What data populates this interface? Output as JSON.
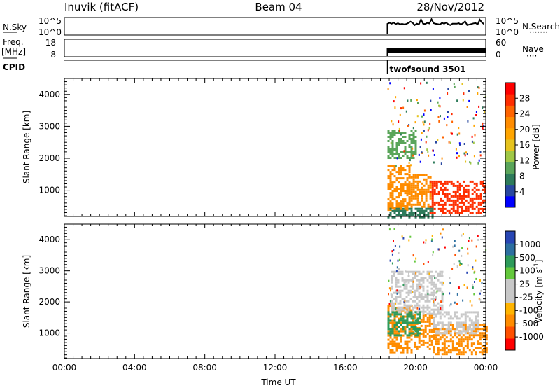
{
  "header": {
    "station": "Inuvik (fitACF)",
    "beam": "Beam 04",
    "date": "28/Nov/2012"
  },
  "strips": {
    "nsky_label": "N.Sky",
    "nsky_ticks": [
      "10^5",
      "10^0"
    ],
    "nsearch_label": "N.Search",
    "nsearch_ticks": [
      "10^5",
      "10^0"
    ],
    "freq_label": "Freq.",
    "freq_unit": "[MHz]",
    "freq_ticks": [
      "18",
      "8"
    ],
    "nave_label": "Nave",
    "nave_ticks": [
      "60",
      "0"
    ],
    "cpid_label": "CPID",
    "cpid_value": "twofsound 3501"
  },
  "chart_data": [
    {
      "type": "heatmap",
      "panel": "power",
      "xlabel": "",
      "ylabel": "Slant Range [km]",
      "x_range_hours": [
        0,
        24
      ],
      "x_ticks": [],
      "y_range_km": [
        180,
        4500
      ],
      "y_ticks": [
        "1000",
        "2000",
        "3000",
        "4000"
      ],
      "colorbar_label": "Power [dB]",
      "colorbar_ticks": [
        "28",
        "24",
        "20",
        "16",
        "12",
        "8",
        "4"
      ],
      "colors": [
        "#0000ff",
        "#2948a0",
        "#2e7b5b",
        "#5aa55a",
        "#a0c846",
        "#e6c31e",
        "#ffa500",
        "#ff8c00",
        "#ff6400",
        "#ff2d00",
        "#ff0000"
      ],
      "data_start_hour": 18.4,
      "echo_regions": [
        {
          "t0": 18.4,
          "t1": 19.6,
          "r0": 400,
          "r1": 1800,
          "value_db": 22
        },
        {
          "t0": 19.6,
          "t1": 20.8,
          "r0": 500,
          "r1": 1500,
          "value_db": 20
        },
        {
          "t0": 20.8,
          "t1": 24.0,
          "r0": 250,
          "r1": 1300,
          "value_db": 28
        },
        {
          "t0": 18.4,
          "t1": 20.0,
          "r0": 2000,
          "r1": 2900,
          "value_db": 8
        },
        {
          "t0": 18.4,
          "t1": 21.0,
          "r0": 180,
          "r1": 450,
          "value_db": 6
        }
      ]
    },
    {
      "type": "heatmap",
      "panel": "velocity",
      "xlabel": "Time UT",
      "ylabel": "Slant Range [km]",
      "x_range_hours": [
        0,
        24
      ],
      "x_ticks": [
        "00:00",
        "04:00",
        "08:00",
        "12:00",
        "16:00",
        "20:00",
        "00:00"
      ],
      "y_range_km": [
        180,
        4500
      ],
      "y_ticks": [
        "1000",
        "2000",
        "3000",
        "4000"
      ],
      "colorbar_label": "Velocity [m s^-1]",
      "colorbar_ticks": [
        "1000",
        "500",
        "100",
        "25",
        "-25",
        "-100",
        "-500",
        "-1000"
      ],
      "colors": [
        "#ff0000",
        "#ff5000",
        "#ff8c00",
        "#ffb400",
        "#c8c8c8",
        "#c8c8c8",
        "#64c83c",
        "#2e9b5a",
        "#2d6fa0",
        "#2846b4"
      ],
      "data_start_hour": 18.4,
      "echo_regions": [
        {
          "t0": 18.4,
          "t1": 19.8,
          "r0": 400,
          "r1": 1900,
          "value_ms": -150
        },
        {
          "t0": 19.8,
          "t1": 21.0,
          "r0": 500,
          "r1": 1600,
          "value_ms": -120
        },
        {
          "t0": 21.0,
          "t1": 24.0,
          "r0": 300,
          "r1": 1300,
          "value_ms": -200
        },
        {
          "t0": 21.0,
          "t1": 23.6,
          "r0": 1000,
          "r1": 1700,
          "value_ms": 0
        },
        {
          "t0": 18.6,
          "t1": 21.5,
          "r0": 1600,
          "r1": 3000,
          "value_ms": 0
        },
        {
          "t0": 18.4,
          "t1": 20.2,
          "r0": 900,
          "r1": 1700,
          "value_ms": 150
        }
      ]
    }
  ]
}
